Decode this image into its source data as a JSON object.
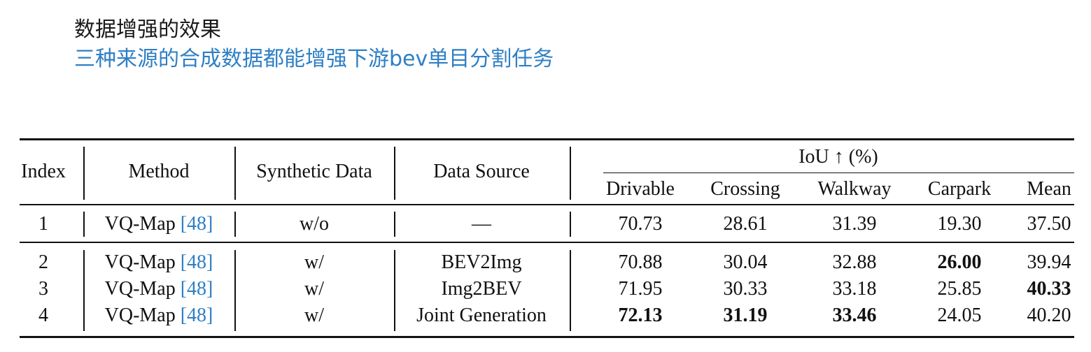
{
  "header": {
    "title": "数据增强的效果",
    "subtitle": "三种来源的合成数据都能增强下游bev单目分割任务"
  },
  "table": {
    "headers": {
      "index": "Index",
      "method": "Method",
      "synthetic": "Synthetic Data",
      "source": "Data Source",
      "iou_group": "IoU ↑ (%)",
      "metrics": [
        "Drivable",
        "Crossing",
        "Walkway",
        "Carpark",
        "Mean"
      ]
    },
    "rows": [
      {
        "index": "1",
        "method": "VQ-Map",
        "cite": "[48]",
        "synthetic": "w/o",
        "source": "—",
        "values": [
          "70.73",
          "28.61",
          "31.39",
          "19.30",
          "37.50"
        ],
        "bold": [
          false,
          false,
          false,
          false,
          false
        ]
      },
      {
        "index": "2",
        "method": "VQ-Map",
        "cite": "[48]",
        "synthetic": "w/",
        "source": "BEV2Img",
        "values": [
          "70.88",
          "30.04",
          "32.88",
          "26.00",
          "39.94"
        ],
        "bold": [
          false,
          false,
          false,
          true,
          false
        ]
      },
      {
        "index": "3",
        "method": "VQ-Map",
        "cite": "[48]",
        "synthetic": "w/",
        "source": "Img2BEV",
        "values": [
          "71.95",
          "30.33",
          "33.18",
          "25.85",
          "40.33"
        ],
        "bold": [
          false,
          false,
          false,
          false,
          true
        ]
      },
      {
        "index": "4",
        "method": "VQ-Map",
        "cite": "[48]",
        "synthetic": "w/",
        "source": "Joint Generation",
        "values": [
          "72.13",
          "31.19",
          "33.46",
          "24.05",
          "40.20"
        ],
        "bold": [
          true,
          true,
          true,
          false,
          false
        ]
      }
    ]
  }
}
